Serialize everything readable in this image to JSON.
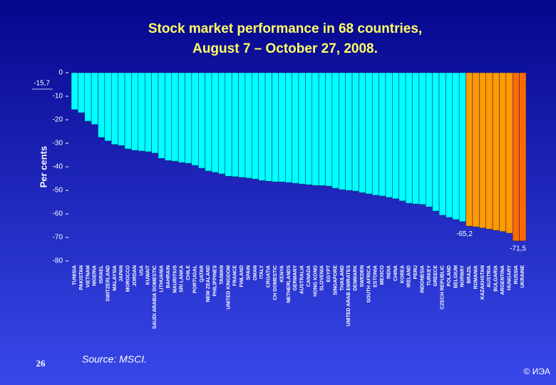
{
  "chart_data": {
    "type": "bar",
    "title": "Stock market performance in 68 countries,",
    "subtitle": "August 7 – October 27, 2008.",
    "ylabel": "Per cents",
    "categories": [
      "TUNISIA",
      "PAKISTAN",
      "VIETNAM",
      "NIGERIA",
      "ISRAEL",
      "SWITZERLAND",
      "MALAYSIA",
      "JAPAN",
      "MOROCCO",
      "JORDAN",
      "USA",
      "KUWAIT",
      "SAUDI ARABIA DOMESTIC",
      "LITHUANIA",
      "BAHRAIN",
      "MAURITIUS",
      "SRI LANKA",
      "CHILE",
      "PORTUGAL",
      "QATAR",
      "NEW ZEALAND",
      "PHILIPPINES",
      "TAIWAN",
      "UNITED KINGDOM",
      "FRANCE",
      "FINLAND",
      "SPAIN",
      "OMAN",
      "ITALY",
      "CROATIA",
      "CH DOMESTIC",
      "KENYA",
      "NETHERLANDS",
      "GERMANY",
      "AUSTRALIA",
      "CANADA",
      "HONG KONG",
      "SLOVENIA",
      "EGYPT",
      "SINGAPORE",
      "THAILAND",
      "UNITED ARAB EMIRATES",
      "DENMARK",
      "SWEDEN",
      "SOUTH AFRICA",
      "ESTONIA",
      "MEXICO",
      "INDIA",
      "CHINA",
      "KOREA",
      "IRELAND",
      "PERU",
      "INDONESIA",
      "TURKEY",
      "GREECE",
      "CZECH REPUBLIC",
      "POLAND",
      "BELGIUM",
      "NORWAY",
      "BRAZIL",
      "ROMANIA",
      "KAZAKHSTAN",
      "AUSTRIA",
      "BULGARIA",
      "ARGENTINA",
      "HUNGARY",
      "RUSSIA",
      "UKRAINE"
    ],
    "values": [
      -15.7,
      -17,
      -20.6,
      -22,
      -27.5,
      -29,
      -30.5,
      -31,
      -32.4,
      -33,
      -33.3,
      -33.6,
      -34.2,
      -36.4,
      -37.3,
      -37.6,
      -38.2,
      -38.5,
      -39.4,
      -40.6,
      -41.8,
      -42.4,
      -43,
      -44,
      -44.2,
      -44.5,
      -44.8,
      -45.2,
      -45.8,
      -46.1,
      -46.4,
      -46.4,
      -46.7,
      -47,
      -47.3,
      -47.6,
      -47.9,
      -48,
      -48.2,
      -49.1,
      -49.7,
      -50,
      -50.3,
      -51,
      -51.5,
      -52.1,
      -52.4,
      -53,
      -53.6,
      -54.5,
      -55.5,
      -55.8,
      -56,
      -57,
      -58.8,
      -60.6,
      -61.5,
      -62.4,
      -63.3,
      -65.2,
      -65.5,
      -66,
      -66.5,
      -67,
      -67.5,
      -68.2,
      -71.5,
      -71.5
    ],
    "value_labels": [
      "-15,7",
      null,
      null,
      null,
      null,
      null,
      null,
      null,
      null,
      null,
      null,
      null,
      null,
      null,
      null,
      null,
      null,
      null,
      null,
      null,
      null,
      null,
      null,
      null,
      null,
      null,
      null,
      null,
      null,
      null,
      null,
      null,
      null,
      null,
      null,
      null,
      null,
      null,
      null,
      null,
      null,
      null,
      null,
      null,
      null,
      null,
      null,
      null,
      null,
      null,
      null,
      null,
      null,
      null,
      null,
      null,
      null,
      null,
      null,
      "-65,2",
      null,
      null,
      null,
      null,
      null,
      null,
      null,
      "-71,5"
    ],
    "colors": [
      "#00ffff",
      "#00ffff",
      "#00ffff",
      "#00ffff",
      "#00ffff",
      "#00ffff",
      "#00ffff",
      "#00ffff",
      "#00ffff",
      "#00ffff",
      "#00ffff",
      "#00ffff",
      "#00ffff",
      "#00ffff",
      "#00ffff",
      "#00ffff",
      "#00ffff",
      "#00ffff",
      "#00ffff",
      "#00ffff",
      "#00ffff",
      "#00ffff",
      "#00ffff",
      "#00ffff",
      "#00ffff",
      "#00ffff",
      "#00ffff",
      "#00ffff",
      "#00ffff",
      "#00ffff",
      "#00ffff",
      "#00ffff",
      "#00ffff",
      "#00ffff",
      "#00ffff",
      "#00ffff",
      "#00ffff",
      "#00ffff",
      "#00ffff",
      "#00ffff",
      "#00ffff",
      "#00ffff",
      "#00ffff",
      "#00ffff",
      "#00ffff",
      "#00ffff",
      "#00ffff",
      "#00ffff",
      "#00ffff",
      "#00ffff",
      "#00ffff",
      "#00ffff",
      "#00ffff",
      "#00ffff",
      "#00ffff",
      "#00ffff",
      "#00ffff",
      "#00ffff",
      "#00ffff",
      "#ff9900",
      "#ff9900",
      "#ff9900",
      "#ff9900",
      "#ff9900",
      "#ff9900",
      "#ff9900",
      "#ff6a00",
      "#ff6a00"
    ],
    "ylim": [
      0,
      -80
    ],
    "yticks": [
      0,
      -10,
      -20,
      -30,
      -40,
      -50,
      -60,
      -70,
      -80
    ]
  },
  "page_number": "26",
  "source": "Source: MSCI.",
  "copyright": "© ИЭА"
}
